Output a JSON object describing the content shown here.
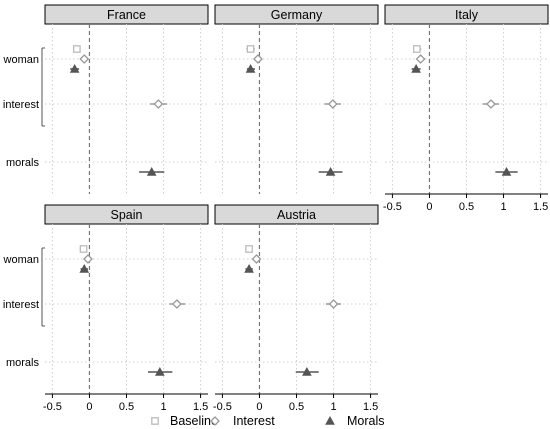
{
  "chart_data": {
    "type": "scatter",
    "variables": [
      "woman",
      "interest",
      "morals"
    ],
    "x_ticks": [
      "-0.5",
      "0",
      "0.5",
      "1",
      "1.5"
    ],
    "xlim": [
      -0.6,
      1.6
    ],
    "reference_line_x": 0,
    "grid": "dotted",
    "legend_position": "bottom",
    "series": [
      {
        "name": "Baseline",
        "marker": "square",
        "color": "#bbbbbb"
      },
      {
        "name": "Interest",
        "marker": "diamond",
        "color": "#999999"
      },
      {
        "name": "Morals",
        "marker": "triangle",
        "color": "#555555"
      }
    ],
    "panels": [
      {
        "title": "France",
        "estimates": [
          {
            "variable": "woman",
            "series": "Baseline",
            "value": -0.17,
            "ci": [
              -0.22,
              -0.12
            ]
          },
          {
            "variable": "woman",
            "series": "Interest",
            "value": -0.07,
            "ci": [
              -0.11,
              -0.03
            ]
          },
          {
            "variable": "woman",
            "series": "Morals",
            "value": -0.2,
            "ci": [
              -0.26,
              -0.14
            ]
          },
          {
            "variable": "interest",
            "series": "Interest",
            "value": 0.93,
            "ci": [
              0.82,
              1.05
            ]
          },
          {
            "variable": "morals",
            "series": "Morals",
            "value": 0.84,
            "ci": [
              0.67,
              1.01
            ]
          }
        ]
      },
      {
        "title": "Germany",
        "estimates": [
          {
            "variable": "woman",
            "series": "Baseline",
            "value": -0.12,
            "ci": [
              -0.18,
              -0.06
            ]
          },
          {
            "variable": "woman",
            "series": "Interest",
            "value": -0.02,
            "ci": [
              -0.06,
              0.03
            ]
          },
          {
            "variable": "woman",
            "series": "Morals",
            "value": -0.12,
            "ci": [
              -0.17,
              -0.06
            ]
          },
          {
            "variable": "interest",
            "series": "Interest",
            "value": 0.99,
            "ci": [
              0.88,
              1.1
            ]
          },
          {
            "variable": "morals",
            "series": "Morals",
            "value": 0.96,
            "ci": [
              0.8,
              1.12
            ]
          }
        ]
      },
      {
        "title": "Italy",
        "estimates": [
          {
            "variable": "woman",
            "series": "Baseline",
            "value": -0.17,
            "ci": [
              -0.22,
              -0.11
            ]
          },
          {
            "variable": "woman",
            "series": "Interest",
            "value": -0.12,
            "ci": [
              -0.17,
              -0.06
            ]
          },
          {
            "variable": "woman",
            "series": "Morals",
            "value": -0.18,
            "ci": [
              -0.24,
              -0.12
            ]
          },
          {
            "variable": "interest",
            "series": "Interest",
            "value": 0.83,
            "ci": [
              0.72,
              0.94
            ]
          },
          {
            "variable": "morals",
            "series": "Morals",
            "value": 1.04,
            "ci": [
              0.89,
              1.19
            ]
          }
        ]
      },
      {
        "title": "Spain",
        "estimates": [
          {
            "variable": "woman",
            "series": "Baseline",
            "value": -0.08,
            "ci": [
              -0.13,
              -0.03
            ]
          },
          {
            "variable": "woman",
            "series": "Interest",
            "value": -0.02,
            "ci": [
              -0.06,
              0.02
            ]
          },
          {
            "variable": "woman",
            "series": "Morals",
            "value": -0.07,
            "ci": [
              -0.12,
              -0.02
            ]
          },
          {
            "variable": "interest",
            "series": "Interest",
            "value": 1.18,
            "ci": [
              1.08,
              1.29
            ]
          },
          {
            "variable": "morals",
            "series": "Morals",
            "value": 0.95,
            "ci": [
              0.79,
              1.12
            ]
          }
        ]
      },
      {
        "title": "Austria",
        "estimates": [
          {
            "variable": "woman",
            "series": "Baseline",
            "value": -0.14,
            "ci": [
              -0.19,
              -0.09
            ]
          },
          {
            "variable": "woman",
            "series": "Interest",
            "value": -0.04,
            "ci": [
              -0.08,
              0.01
            ]
          },
          {
            "variable": "woman",
            "series": "Morals",
            "value": -0.14,
            "ci": [
              -0.19,
              -0.09
            ]
          },
          {
            "variable": "interest",
            "series": "Interest",
            "value": 1.0,
            "ci": [
              0.9,
              1.1
            ]
          },
          {
            "variable": "morals",
            "series": "Morals",
            "value": 0.64,
            "ci": [
              0.49,
              0.8
            ]
          }
        ]
      }
    ]
  }
}
